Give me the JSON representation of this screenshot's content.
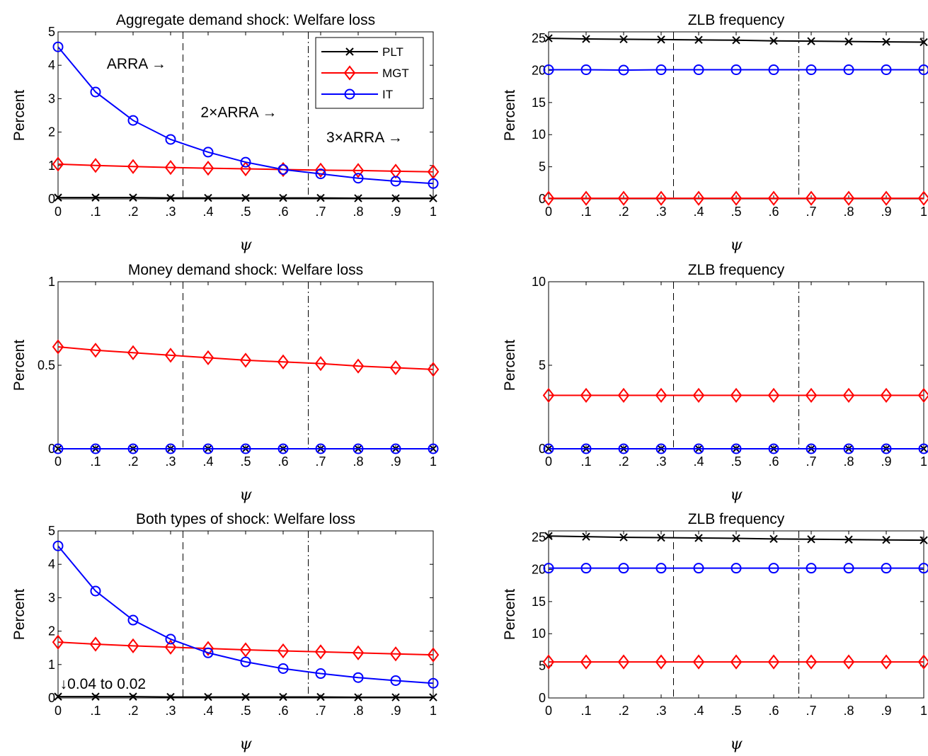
{
  "colors": {
    "PLT": "#000000",
    "MGT": "#ff0000",
    "IT": "#0000ff"
  },
  "chart_data": [
    {
      "type": "line",
      "title": "Aggregate demand shock:  Welfare loss",
      "xlabel": "ψ",
      "ylabel": "Percent",
      "x": [
        0,
        0.1,
        0.2,
        0.3,
        0.4,
        0.5,
        0.6,
        0.7,
        0.8,
        0.9,
        1.0
      ],
      "xtick_labels": [
        "0",
        ".1",
        ".2",
        ".3",
        ".4",
        ".5",
        ".6",
        ".7",
        ".8",
        ".9",
        "1"
      ],
      "ylim": [
        0,
        5
      ],
      "yticks": [
        0,
        1,
        2,
        3,
        4,
        5
      ],
      "vlines": [
        {
          "x": 0.333,
          "style": "dashed"
        },
        {
          "x": 0.667,
          "style": "dashdot"
        }
      ],
      "annotations": [
        {
          "text": "ARRA →",
          "x": 0.13,
          "y": 3.9
        },
        {
          "text": "2×ARRA →",
          "x": 0.38,
          "y": 2.45
        },
        {
          "text": "3×ARRA →",
          "x": 0.715,
          "y": 1.7
        }
      ],
      "legend": {
        "position": "top-right",
        "entries": [
          "PLT",
          "MGT",
          "IT"
        ]
      },
      "series": [
        {
          "name": "PLT",
          "marker": "x",
          "values": [
            0.04,
            0.04,
            0.04,
            0.03,
            0.03,
            0.03,
            0.03,
            0.03,
            0.02,
            0.02,
            0.02
          ]
        },
        {
          "name": "MGT",
          "marker": "diamond",
          "values": [
            1.04,
            1.0,
            0.97,
            0.94,
            0.92,
            0.9,
            0.88,
            0.86,
            0.85,
            0.83,
            0.81
          ]
        },
        {
          "name": "IT",
          "marker": "circle",
          "values": [
            4.55,
            3.2,
            2.35,
            1.78,
            1.4,
            1.1,
            0.88,
            0.75,
            0.62,
            0.53,
            0.46
          ]
        }
      ]
    },
    {
      "type": "line",
      "title": "ZLB frequency",
      "xlabel": "ψ",
      "ylabel": "Percent",
      "x": [
        0,
        0.1,
        0.2,
        0.3,
        0.4,
        0.5,
        0.6,
        0.7,
        0.8,
        0.9,
        1.0
      ],
      "xtick_labels": [
        "0",
        ".1",
        ".2",
        ".3",
        ".4",
        ".5",
        ".6",
        ".7",
        ".8",
        ".9",
        "1"
      ],
      "ylim": [
        0,
        26
      ],
      "yticks": [
        0,
        5,
        10,
        15,
        20,
        25
      ],
      "vlines": [
        {
          "x": 0.333,
          "style": "dashed"
        },
        {
          "x": 0.667,
          "style": "dashdot"
        }
      ],
      "series": [
        {
          "name": "PLT",
          "marker": "x",
          "values": [
            25.0,
            24.9,
            24.85,
            24.8,
            24.75,
            24.7,
            24.6,
            24.55,
            24.5,
            24.45,
            24.4
          ]
        },
        {
          "name": "MGT",
          "marker": "diamond",
          "values": [
            0.1,
            0.1,
            0.1,
            0.1,
            0.1,
            0.1,
            0.1,
            0.1,
            0.1,
            0.1,
            0.1
          ]
        },
        {
          "name": "IT",
          "marker": "circle",
          "values": [
            20.1,
            20.1,
            20.05,
            20.1,
            20.1,
            20.1,
            20.1,
            20.1,
            20.1,
            20.1,
            20.1
          ]
        }
      ]
    },
    {
      "type": "line",
      "title": "Money demand shock:  Welfare loss",
      "xlabel": "ψ",
      "ylabel": "Percent",
      "x": [
        0,
        0.1,
        0.2,
        0.3,
        0.4,
        0.5,
        0.6,
        0.7,
        0.8,
        0.9,
        1.0
      ],
      "xtick_labels": [
        "0",
        ".1",
        ".2",
        ".3",
        ".4",
        ".5",
        ".6",
        ".7",
        ".8",
        ".9",
        "1"
      ],
      "ylim": [
        0,
        1
      ],
      "yticks": [
        0,
        0.5,
        1
      ],
      "ytick_labels": [
        "0",
        "0.5",
        "1"
      ],
      "vlines": [
        {
          "x": 0.333,
          "style": "dashed"
        },
        {
          "x": 0.667,
          "style": "dashdot"
        }
      ],
      "series": [
        {
          "name": "PLT",
          "marker": "x",
          "values": [
            0,
            0,
            0,
            0,
            0,
            0,
            0,
            0,
            0,
            0,
            0
          ]
        },
        {
          "name": "MGT",
          "marker": "diamond",
          "values": [
            0.61,
            0.59,
            0.575,
            0.56,
            0.545,
            0.53,
            0.52,
            0.51,
            0.495,
            0.485,
            0.475
          ]
        },
        {
          "name": "IT",
          "marker": "circle",
          "values": [
            0,
            0,
            0,
            0,
            0,
            0,
            0,
            0,
            0,
            0,
            0
          ]
        }
      ]
    },
    {
      "type": "line",
      "title": "ZLB frequency",
      "xlabel": "ψ",
      "ylabel": "Percent",
      "x": [
        0,
        0.1,
        0.2,
        0.3,
        0.4,
        0.5,
        0.6,
        0.7,
        0.8,
        0.9,
        1.0
      ],
      "xtick_labels": [
        "0",
        ".1",
        ".2",
        ".3",
        ".4",
        ".5",
        ".6",
        ".7",
        ".8",
        ".9",
        "1"
      ],
      "ylim": [
        0,
        10
      ],
      "yticks": [
        0,
        5,
        10
      ],
      "vlines": [
        {
          "x": 0.333,
          "style": "dashed"
        },
        {
          "x": 0.667,
          "style": "dashdot"
        }
      ],
      "series": [
        {
          "name": "PLT",
          "marker": "x",
          "values": [
            0,
            0,
            0,
            0,
            0,
            0,
            0,
            0,
            0,
            0,
            0
          ]
        },
        {
          "name": "MGT",
          "marker": "diamond",
          "values": [
            3.2,
            3.2,
            3.2,
            3.2,
            3.2,
            3.2,
            3.2,
            3.2,
            3.2,
            3.2,
            3.2
          ]
        },
        {
          "name": "IT",
          "marker": "circle",
          "values": [
            0,
            0,
            0,
            0,
            0,
            0,
            0,
            0,
            0,
            0,
            0
          ]
        }
      ]
    },
    {
      "type": "line",
      "title": "Both types of shock:  Welfare loss",
      "xlabel": "ψ",
      "ylabel": "Percent",
      "x": [
        0,
        0.1,
        0.2,
        0.3,
        0.4,
        0.5,
        0.6,
        0.7,
        0.8,
        0.9,
        1.0
      ],
      "xtick_labels": [
        "0",
        ".1",
        ".2",
        ".3",
        ".4",
        ".5",
        ".6",
        ".7",
        ".8",
        ".9",
        "1"
      ],
      "ylim": [
        0,
        5
      ],
      "yticks": [
        0,
        1,
        2,
        3,
        4,
        5
      ],
      "vlines": [
        {
          "x": 0.333,
          "style": "dashed"
        },
        {
          "x": 0.667,
          "style": "dashdot"
        }
      ],
      "annotations": [
        {
          "text": "↓0.04 to 0.02",
          "x": 0.005,
          "y": 0.28
        }
      ],
      "series": [
        {
          "name": "PLT",
          "marker": "x",
          "values": [
            0.04,
            0.04,
            0.04,
            0.03,
            0.03,
            0.03,
            0.03,
            0.03,
            0.02,
            0.02,
            0.02
          ]
        },
        {
          "name": "MGT",
          "marker": "diamond",
          "values": [
            1.67,
            1.61,
            1.56,
            1.52,
            1.48,
            1.44,
            1.41,
            1.38,
            1.35,
            1.32,
            1.29
          ]
        },
        {
          "name": "IT",
          "marker": "circle",
          "values": [
            4.55,
            3.2,
            2.33,
            1.76,
            1.35,
            1.08,
            0.88,
            0.73,
            0.61,
            0.52,
            0.44
          ]
        }
      ]
    },
    {
      "type": "line",
      "title": "ZLB frequency",
      "xlabel": "ψ",
      "ylabel": "Percent",
      "x": [
        0,
        0.1,
        0.2,
        0.3,
        0.4,
        0.5,
        0.6,
        0.7,
        0.8,
        0.9,
        1.0
      ],
      "xtick_labels": [
        "0",
        ".1",
        ".2",
        ".3",
        ".4",
        ".5",
        ".6",
        ".7",
        ".8",
        ".9",
        "1"
      ],
      "ylim": [
        0,
        26
      ],
      "yticks": [
        0,
        5,
        10,
        15,
        20,
        25
      ],
      "vlines": [
        {
          "x": 0.333,
          "style": "dashed"
        },
        {
          "x": 0.667,
          "style": "dashdot"
        }
      ],
      "series": [
        {
          "name": "PLT",
          "marker": "x",
          "values": [
            25.2,
            25.1,
            25.0,
            24.95,
            24.9,
            24.85,
            24.75,
            24.7,
            24.65,
            24.6,
            24.55
          ]
        },
        {
          "name": "MGT",
          "marker": "diamond",
          "values": [
            5.6,
            5.6,
            5.6,
            5.6,
            5.6,
            5.6,
            5.6,
            5.6,
            5.6,
            5.6,
            5.6
          ]
        },
        {
          "name": "IT",
          "marker": "circle",
          "values": [
            20.2,
            20.2,
            20.2,
            20.2,
            20.2,
            20.2,
            20.2,
            20.2,
            20.2,
            20.2,
            20.2
          ]
        }
      ]
    }
  ]
}
